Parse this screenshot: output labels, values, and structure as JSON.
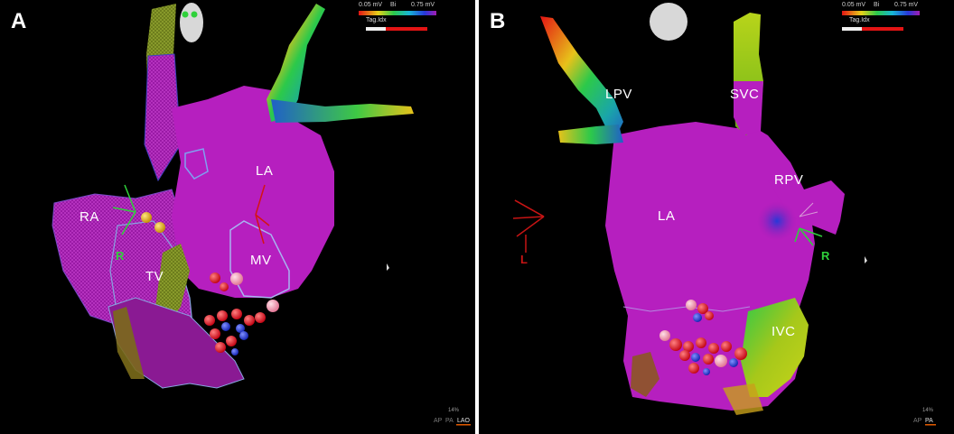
{
  "panels": [
    {
      "letter": "A",
      "labels": {
        "ra": "RA",
        "tv": "TV",
        "la": "LA",
        "mv": "MV"
      },
      "axis": {
        "right": "R"
      },
      "scale": {
        "min": "0.05 mV",
        "mode": "Bi",
        "max": "0.75 mV",
        "tag": "Tag.Idx"
      },
      "zoom": "14%",
      "views": [
        "AP",
        "PA",
        "LAO"
      ],
      "active_view": "LAO"
    },
    {
      "letter": "B",
      "labels": {
        "lpv": "LPV",
        "svc": "SVC",
        "la": "LA",
        "rpv": "RPV",
        "ivc": "IVC"
      },
      "axis": {
        "left": "L",
        "right": "R"
      },
      "scale": {
        "min": "0.05 mV",
        "mode": "Bi",
        "max": "0.75 mV",
        "tag": "Tag.Idx"
      },
      "zoom": "14%",
      "views": [
        "AP",
        "PA"
      ],
      "active_view": "PA"
    }
  ],
  "colors": {
    "tissue": "#b61fbf",
    "healthy_tissue": "#a21cb1",
    "red_tag": "#e6111c",
    "blue_tag": "#2638d8",
    "yellow_tag": "#e7b31a",
    "axis_green": "#2fd13a",
    "axis_red": "#c61414"
  }
}
